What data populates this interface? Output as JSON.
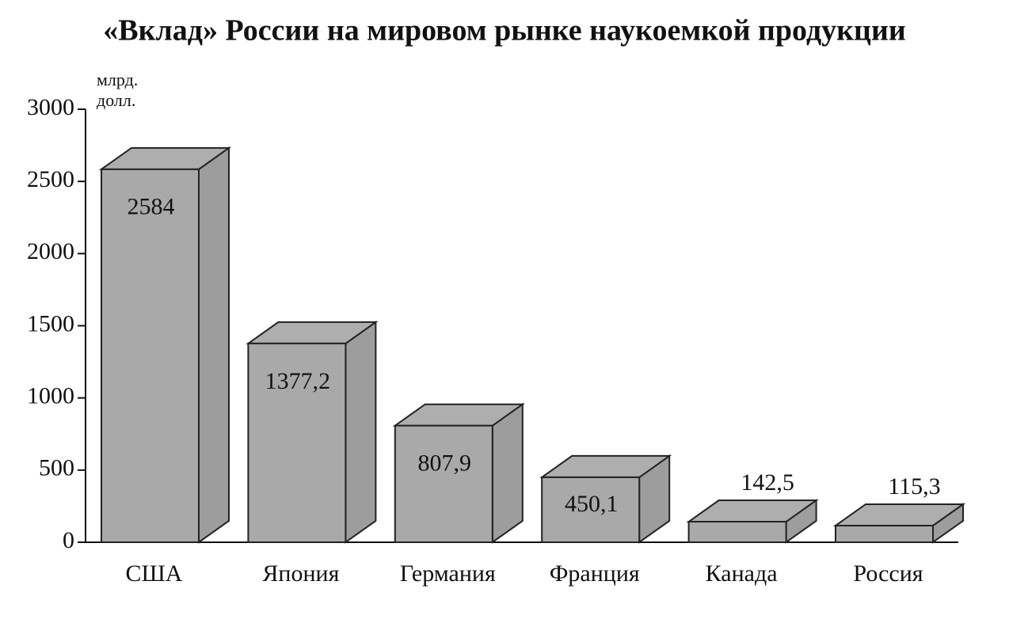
{
  "chart_data": {
    "type": "bar3d",
    "title": "«Вклад» России на мировом рынке наукоемкой продукции",
    "y_label": "млрд. долл.",
    "categories": [
      "США",
      "Япония",
      "Германия",
      "Франция",
      "Канада",
      "Россия"
    ],
    "values": [
      2584,
      1377.2,
      807.9,
      450.1,
      142.5,
      115.3
    ],
    "value_labels": [
      "2584",
      "1377,2",
      "807,9",
      "450,1",
      "142,5",
      "115,3"
    ],
    "color": "#a9a9a9",
    "ylim": [
      0,
      3000
    ],
    "yticks": [
      0,
      500,
      1000,
      1500,
      2000,
      2500,
      3000
    ]
  }
}
